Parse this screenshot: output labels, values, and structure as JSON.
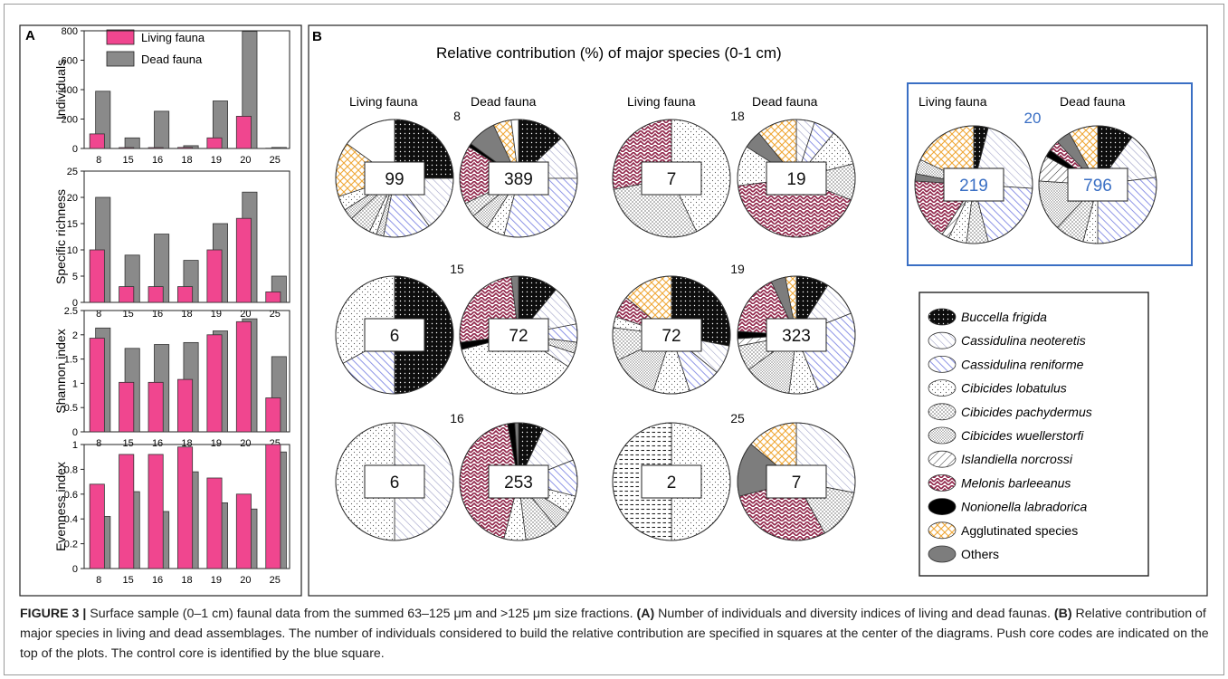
{
  "panel_a": {
    "letter": "A",
    "legend": [
      "Living fauna",
      "Dead fauna"
    ],
    "colors": {
      "living": "#f0468f",
      "dead": "#8a8a8a"
    },
    "chart_data": [
      {
        "type": "bar",
        "ylabel": "Individuals",
        "categories": [
          "8",
          "15",
          "16",
          "18",
          "19",
          "20",
          "25"
        ],
        "ylim": [
          0,
          800
        ],
        "yticks": [
          0,
          200,
          400,
          600,
          800
        ],
        "series": [
          {
            "name": "Living fauna",
            "values": [
              99,
              6,
              6,
              7,
              72,
              219,
              2
            ]
          },
          {
            "name": "Dead fauna",
            "values": [
              389,
              72,
              253,
              19,
              323,
              796,
              7
            ]
          }
        ]
      },
      {
        "type": "bar",
        "ylabel": "Specific richness",
        "categories": [
          "8",
          "15",
          "16",
          "18",
          "19",
          "20",
          "25"
        ],
        "ylim": [
          0,
          25
        ],
        "yticks": [
          0,
          5,
          10,
          15,
          20,
          25
        ],
        "series": [
          {
            "name": "Living fauna",
            "values": [
              10,
              3,
              3,
              3,
              10,
              16,
              2
            ]
          },
          {
            "name": "Dead fauna",
            "values": [
              20,
              9,
              13,
              8,
              15,
              21,
              5
            ]
          }
        ]
      },
      {
        "type": "bar",
        "ylabel": "Shannon index",
        "categories": [
          "8",
          "15",
          "16",
          "18",
          "19",
          "20",
          "25"
        ],
        "ylim": [
          0,
          2.5
        ],
        "yticks": [
          0,
          0.5,
          1,
          1.5,
          2,
          2.5
        ],
        "series": [
          {
            "name": "Living fauna",
            "values": [
              1.93,
              1.02,
              1.02,
              1.08,
              2.0,
              2.27,
              0.7
            ]
          },
          {
            "name": "Dead fauna",
            "values": [
              2.14,
              1.72,
              1.8,
              1.84,
              2.08,
              2.33,
              1.55
            ]
          }
        ]
      },
      {
        "type": "bar",
        "ylabel": "Evenness index",
        "categories": [
          "8",
          "15",
          "16",
          "18",
          "19",
          "20",
          "25"
        ],
        "ylim": [
          0,
          1
        ],
        "yticks": [
          0,
          0.2,
          0.4,
          0.6,
          0.8,
          1
        ],
        "series": [
          {
            "name": "Living fauna",
            "values": [
              0.68,
              0.92,
              0.92,
              0.98,
              0.73,
              0.6,
              1.0
            ]
          },
          {
            "name": "Dead fauna",
            "values": [
              0.42,
              0.62,
              0.46,
              0.78,
              0.53,
              0.48,
              0.94
            ]
          }
        ]
      }
    ]
  },
  "panel_b": {
    "letter": "B",
    "title": "Relative contribution (%) of major species (0-1 cm)",
    "living_label": "Living fauna",
    "dead_label": "Dead fauna",
    "control_color": "#3a6fc4",
    "species": [
      {
        "key": "bf",
        "name": "Buccella frigida",
        "italic": true
      },
      {
        "key": "cn",
        "name": "Cassidulina neoteretis",
        "italic": true
      },
      {
        "key": "cr",
        "name": "Cassidulina reniforme",
        "italic": true
      },
      {
        "key": "cl",
        "name": "Cibicides lobatulus",
        "italic": true
      },
      {
        "key": "cp",
        "name": "Cibicides pachydermus",
        "italic": true
      },
      {
        "key": "cw",
        "name": "Cibicides wuellerstorfi",
        "italic": true
      },
      {
        "key": "in",
        "name": "Islandiella norcrossi",
        "italic": true
      },
      {
        "key": "mb",
        "name": "Melonis barleeanus",
        "italic": true
      },
      {
        "key": "nl",
        "name": "Nonionella labradorica",
        "italic": true
      },
      {
        "key": "ag",
        "name": "Agglutinated species",
        "italic": false
      },
      {
        "key": "ot",
        "name": "Others",
        "italic": false
      },
      {
        "key": "un",
        "name": "",
        "italic": false
      }
    ],
    "chart_data": [
      {
        "type": "pie",
        "core": "8",
        "control": false,
        "living": {
          "n": "99",
          "slices": [
            [
              "bf",
              25
            ],
            [
              "cn",
              15
            ],
            [
              "cr",
              13
            ],
            [
              "cw",
              2
            ],
            [
              "cl",
              2
            ],
            [
              "cp",
              6
            ],
            [
              "cw",
              3
            ],
            [
              "cl",
              4
            ],
            [
              "ag",
              15
            ],
            [
              "un",
              15
            ]
          ]
        },
        "dead": {
          "n": "389",
          "slices": [
            [
              "bf",
              13
            ],
            [
              "cn",
              12
            ],
            [
              "cr",
              29
            ],
            [
              "cl",
              5
            ],
            [
              "cw",
              5
            ],
            [
              "cp",
              4
            ],
            [
              "mb",
              16
            ],
            [
              "nl",
              1
            ],
            [
              "ot",
              8
            ],
            [
              "ag",
              5
            ],
            [
              "un",
              2
            ]
          ]
        }
      },
      {
        "type": "pie",
        "core": "18",
        "control": false,
        "living": {
          "n": "7",
          "slices": [
            [
              "cl",
              43
            ],
            [
              "cp",
              29
            ],
            [
              "mb",
              28
            ]
          ]
        },
        "dead": {
          "n": "19",
          "slices": [
            [
              "cn",
              5
            ],
            [
              "cr",
              6
            ],
            [
              "cl",
              10
            ],
            [
              "cp",
              10
            ],
            [
              "mb",
              42
            ],
            [
              "cl",
              11
            ],
            [
              "ot",
              5
            ],
            [
              "ag",
              11
            ]
          ]
        }
      },
      {
        "type": "pie",
        "core": "20",
        "control": true,
        "living": {
          "n": "219",
          "slices": [
            [
              "bf",
              4
            ],
            [
              "cn",
              22
            ],
            [
              "cr",
              20
            ],
            [
              "cp",
              6
            ],
            [
              "cl",
              5
            ],
            [
              "in",
              2
            ],
            [
              "mb",
              17
            ],
            [
              "ot",
              2
            ],
            [
              "cw",
              4
            ],
            [
              "ag",
              18
            ]
          ]
        },
        "dead": {
          "n": "796",
          "slices": [
            [
              "bf",
              10
            ],
            [
              "cn",
              13
            ],
            [
              "cr",
              27
            ],
            [
              "cl",
              4
            ],
            [
              "cp",
              8
            ],
            [
              "cw",
              14
            ],
            [
              "in",
              7
            ],
            [
              "nl",
              2
            ],
            [
              "mb",
              3
            ],
            [
              "ot",
              4
            ],
            [
              "ag",
              8
            ]
          ]
        }
      },
      {
        "type": "pie",
        "core": "15",
        "control": false,
        "living": {
          "n": "6",
          "slices": [
            [
              "bf",
              50
            ],
            [
              "cr",
              17
            ],
            [
              "cl",
              33
            ]
          ]
        },
        "dead": {
          "n": "72",
          "slices": [
            [
              "bf",
              11
            ],
            [
              "cn",
              11
            ],
            [
              "cr",
              5
            ],
            [
              "cw",
              3
            ],
            [
              "cn",
              4
            ],
            [
              "cl",
              37
            ],
            [
              "nl",
              2
            ],
            [
              "mb",
              25
            ],
            [
              "ot",
              2
            ]
          ]
        }
      },
      {
        "type": "pie",
        "core": "19",
        "control": false,
        "living": {
          "n": "72",
          "slices": [
            [
              "bf",
              28
            ],
            [
              "cn",
              8
            ],
            [
              "cr",
              9
            ],
            [
              "cl",
              10
            ],
            [
              "cw",
              13
            ],
            [
              "cp",
              9
            ],
            [
              "cl",
              3
            ],
            [
              "mb",
              6
            ],
            [
              "ag",
              14
            ]
          ]
        },
        "dead": {
          "n": "323",
          "slices": [
            [
              "bf",
              9
            ],
            [
              "cn",
              10
            ],
            [
              "cr",
              25
            ],
            [
              "cl",
              8
            ],
            [
              "cw",
              13
            ],
            [
              "cp",
              7
            ],
            [
              "in",
              2
            ],
            [
              "nl",
              2
            ],
            [
              "mb",
              17
            ],
            [
              "ot",
              4
            ],
            [
              "ag",
              3
            ]
          ]
        }
      },
      {
        "type": "pie",
        "core": "16",
        "control": false,
        "living": {
          "n": "6",
          "slices": [
            [
              "cn",
              50
            ],
            [
              "cl",
              50
            ]
          ]
        },
        "dead": {
          "n": "253",
          "slices": [
            [
              "bf",
              7
            ],
            [
              "cn",
              12
            ],
            [
              "cr",
              10
            ],
            [
              "cl",
              5
            ],
            [
              "cw",
              5
            ],
            [
              "cp",
              9
            ],
            [
              "cl",
              6
            ],
            [
              "mb",
              43
            ],
            [
              "nl",
              2
            ],
            [
              "ot",
              1
            ]
          ]
        }
      },
      {
        "type": "pie",
        "core": "25",
        "control": false,
        "living": {
          "n": "2",
          "slices": [
            [
              "cl",
              50
            ],
            [
              "in",
              50
            ]
          ]
        },
        "dead": {
          "n": "7",
          "slices": [
            [
              "cn",
              28
            ],
            [
              "cp",
              14
            ],
            [
              "mb",
              29
            ],
            [
              "ot",
              15
            ],
            [
              "ag",
              14
            ]
          ]
        }
      }
    ]
  },
  "caption": {
    "figure_label": "FIGURE 3 |",
    "text1": " Surface sample (0–1 cm) faunal data from the summed 63–125 μm and >125 μm size fractions. ",
    "a_label": "(A)",
    "text2": " Number of individuals and diversity indices of living and dead faunas. ",
    "b_label": "(B)",
    "text3": " Relative contribution of major species in living and dead assemblages. The number of individuals considered to build the relative contribution are specified in squares at the center of the diagrams. Push core codes are indicated on the top of the plots. The control core is identified by the blue square."
  }
}
